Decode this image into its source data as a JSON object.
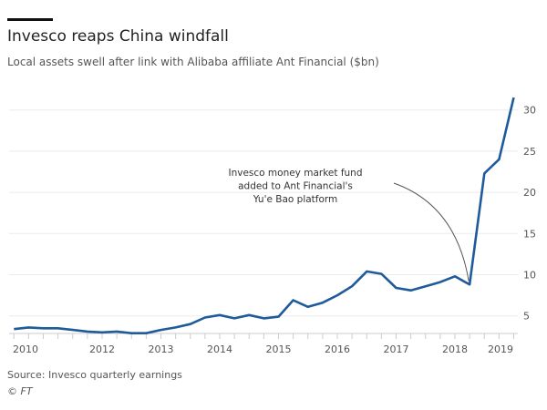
{
  "header": {
    "title": "Invesco reaps China windfall",
    "subtitle": "Local assets swell after link with Alibaba affiliate Ant Financial ($bn)"
  },
  "footer": {
    "source": "Source: Invesco quarterly earnings",
    "credit": "© FT"
  },
  "chart_data": {
    "type": "line",
    "title": "Invesco reaps China windfall",
    "subtitle": "Local assets swell after link with Alibaba affiliate Ant Financial ($bn)",
    "xlabel": "",
    "ylabel": "",
    "x_ticks": [
      2010,
      2012,
      2013,
      2014,
      2015,
      2016,
      2017,
      2018,
      2019
    ],
    "y_ticks": [
      5,
      10,
      15,
      20,
      25,
      30
    ],
    "ylim": [
      3,
      32
    ],
    "y_axis_side": "right",
    "grid": true,
    "line_color": "#1f5b9a",
    "series": [
      {
        "x": [
          2010.5,
          2010.75,
          2011,
          2011.25,
          2011.5,
          2011.75,
          2012,
          2012.25,
          2012.5,
          2012.75,
          2013,
          2013.25,
          2013.5,
          2013.75,
          2014,
          2014.25,
          2014.5,
          2014.75,
          2015,
          2015.25,
          2015.5,
          2015.75,
          2016,
          2016.25,
          2016.5,
          2016.75,
          2017,
          2017.25,
          2017.5,
          2017.75,
          2018,
          2018.25,
          2018.5,
          2018.75,
          2019
        ],
        "values": [
          3.4,
          3.6,
          3.5,
          3.5,
          3.3,
          3.1,
          3.0,
          3.1,
          2.9,
          2.9,
          3.3,
          3.6,
          4.0,
          4.8,
          5.1,
          4.7,
          5.1,
          4.7,
          4.9,
          6.9,
          6.1,
          6.6,
          7.5,
          8.6,
          10.4,
          10.1,
          8.4,
          8.1,
          8.6,
          9.1,
          9.8,
          8.8,
          22.3,
          24.0,
          31.5
        ]
      }
    ],
    "annotations": [
      {
        "text": [
          "Invesco money market fund",
          "added to Ant Financial's",
          "Yu'e Bao platform"
        ],
        "x": 2018.25,
        "y": 8.8
      }
    ]
  }
}
